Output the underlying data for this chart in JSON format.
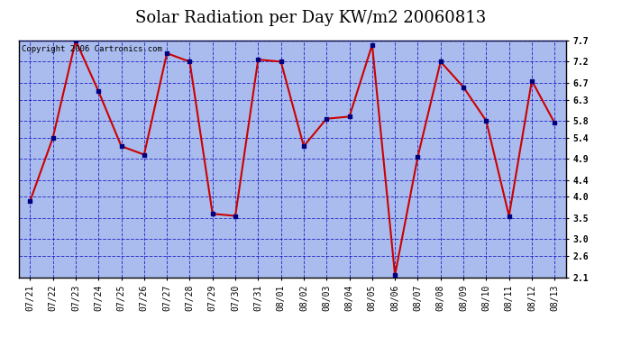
{
  "title": "Solar Radiation per Day KW/m2 20060813",
  "copyright_text": "Copyright 2006 Cartronics.com",
  "x_labels": [
    "07/21",
    "07/22",
    "07/23",
    "07/24",
    "07/25",
    "07/26",
    "07/27",
    "07/28",
    "07/29",
    "07/30",
    "07/31",
    "08/01",
    "08/02",
    "08/03",
    "08/04",
    "08/05",
    "08/06",
    "08/07",
    "08/08",
    "08/09",
    "08/10",
    "08/11",
    "08/12",
    "08/13"
  ],
  "y_values": [
    3.9,
    5.4,
    7.7,
    6.5,
    5.2,
    5.0,
    7.4,
    7.2,
    3.6,
    3.55,
    7.25,
    7.2,
    5.2,
    5.85,
    5.9,
    7.6,
    2.15,
    4.95,
    7.2,
    6.6,
    5.8,
    3.55,
    6.75,
    5.75
  ],
  "line_color": "#cc0000",
  "marker_color": "#000080",
  "marker_size": 3,
  "line_width": 1.5,
  "plot_bg_color": "#aabcee",
  "outer_bg_color": "#ffffff",
  "grid_color": "#0000bb",
  "grid_alpha": 0.7,
  "ylim": [
    2.1,
    7.7
  ],
  "yticks": [
    2.1,
    2.6,
    3.0,
    3.5,
    4.0,
    4.4,
    4.9,
    5.4,
    5.8,
    6.3,
    6.7,
    7.2,
    7.7
  ],
  "title_fontsize": 13,
  "tick_fontsize": 7,
  "copyright_fontsize": 6.5
}
